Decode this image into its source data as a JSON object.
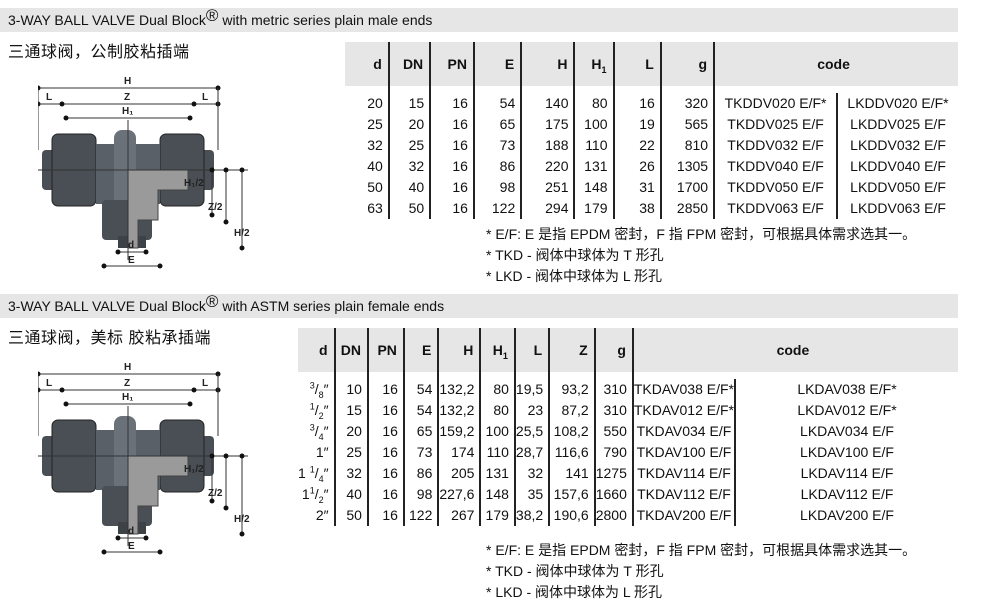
{
  "sections": [
    {
      "title": "3-WAY BALL VALVE Dual Block",
      "reg": "®",
      "title_rest": " with metric series plain male ends",
      "subtitle": "三通球阀，公制胶粘插端",
      "headers": [
        "d",
        "DN",
        "PN",
        "E",
        "H",
        "H",
        "L",
        "g"
      ],
      "h1_sub_index": 5,
      "code_label": "code",
      "rows": [
        {
          "d": "20",
          "v": [
            "15",
            "16",
            "54",
            "140",
            "80",
            "16",
            "320"
          ],
          "t": "TKDDV020 E/F*",
          "l": "LKDDV020 E/F*"
        },
        {
          "d": "25",
          "v": [
            "20",
            "16",
            "65",
            "175",
            "100",
            "19",
            "565"
          ],
          "t": "TKDDV025 E/F",
          "l": "LKDDV025 E/F"
        },
        {
          "d": "32",
          "v": [
            "25",
            "16",
            "73",
            "188",
            "110",
            "22",
            "810"
          ],
          "t": "TKDDV032 E/F",
          "l": "LKDDV032 E/F"
        },
        {
          "d": "40",
          "v": [
            "32",
            "16",
            "86",
            "220",
            "131",
            "26",
            "1305"
          ],
          "t": "TKDDV040 E/F",
          "l": "LKDDV040 E/F"
        },
        {
          "d": "50",
          "v": [
            "40",
            "16",
            "98",
            "251",
            "148",
            "31",
            "1700"
          ],
          "t": "TKDDV050 E/F",
          "l": "LKDDV050 E/F"
        },
        {
          "d": "63",
          "v": [
            "50",
            "16",
            "122",
            "294",
            "179",
            "38",
            "2850"
          ],
          "t": "TKDDV063 E/F",
          "l": "LKDDV063 E/F"
        }
      ],
      "notes": [
        "* E/F: E 是指 EPDM 密封，F 指 FPM 密封，可根据具体需求选其一。",
        "* TKD - 阀体中球体为 T 形孔",
        "* LKD - 阀体中球体为 L 形孔"
      ]
    },
    {
      "title": "3-WAY BALL VALVE Dual Block",
      "reg": "®",
      "title_rest": " with ASTM series plain female ends",
      "subtitle": "三通球阀，美标 胶粘承插端",
      "headers": [
        "d",
        "DN",
        "PN",
        "E",
        "H",
        "H",
        "L",
        "Z",
        "g"
      ],
      "h1_sub_index": 5,
      "code_label": "code",
      "rows": [
        {
          "d": {
            "w": "",
            "n": "3",
            "den": "8"
          },
          "v": [
            "10",
            "16",
            "54",
            "132,2",
            "80",
            "19,5",
            "93,2",
            "310"
          ],
          "t": "TKDAV038 E/F*",
          "l": "LKDAV038 E/F*"
        },
        {
          "d": {
            "w": "",
            "n": "1",
            "den": "2"
          },
          "v": [
            "15",
            "16",
            "54",
            "132,2",
            "80",
            "23",
            "87,2",
            "310"
          ],
          "t": "TKDAV012 E/F*",
          "l": "LKDAV012 E/F*"
        },
        {
          "d": {
            "w": "",
            "n": "3",
            "den": "4"
          },
          "v": [
            "20",
            "16",
            "65",
            "159,2",
            "100",
            "25,5",
            "108,2",
            "550"
          ],
          "t": "TKDAV034 E/F",
          "l": "LKDAV034 E/F"
        },
        {
          "d": {
            "w": "1",
            "n": "",
            "den": ""
          },
          "v": [
            "25",
            "16",
            "73",
            "174",
            "110",
            "28,7",
            "116,6",
            "790"
          ],
          "t": "TKDAV100 E/F",
          "l": "LKDAV100 E/F"
        },
        {
          "d": {
            "w": "1 ",
            "n": "1",
            "den": "4"
          },
          "v": [
            "32",
            "16",
            "86",
            "205",
            "131",
            "32",
            "141",
            "1275"
          ],
          "t": "TKDAV114 E/F",
          "l": "LKDAV114 E/F"
        },
        {
          "d": {
            "w": "1",
            "n": "1",
            "den": "2"
          },
          "v": [
            "40",
            "16",
            "98",
            "227,6",
            "148",
            "35",
            "157,6",
            "1660"
          ],
          "t": "TKDAV112 E/F",
          "l": "LKDAV112 E/F"
        },
        {
          "d": {
            "w": "2",
            "n": "",
            "den": ""
          },
          "v": [
            "50",
            "16",
            "122",
            "267",
            "179",
            "38,2",
            "190,6",
            "2800"
          ],
          "t": "TKDAV200 E/F",
          "l": "LKDAV200 E/F"
        }
      ],
      "notes": [
        "* E/F: E 是指 EPDM 密封，F 指 FPM 密封，可根据具体需求选其一。",
        "* TKD - 阀体中球体为 T 形孔",
        "* LKD - 阀体中球体为 L 形孔"
      ]
    }
  ],
  "inch_mark": "″",
  "h1_sub": "1",
  "drawing_labels": {
    "H": "H",
    "L": "L",
    "Z": "Z",
    "H1": "H₁",
    "H1_2": "H₁/2",
    "Z_2": "Z/2",
    "H_2": "H/2",
    "d": "d",
    "E": "E"
  },
  "colors": {
    "header_bg": "#e6e6e6",
    "valve_body": "#4a4f55",
    "cutaway": "#9a9a9a"
  }
}
